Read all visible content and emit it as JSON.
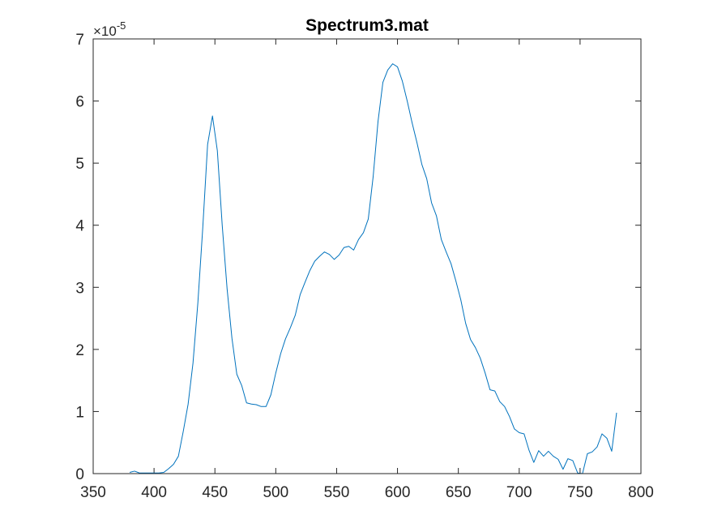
{
  "colors": {
    "series": "#0072BD",
    "axes": "#262626",
    "background": "#ffffff"
  },
  "chart_data": {
    "type": "line",
    "title": "Spectrum3.mat",
    "xlabel": "",
    "ylabel": "",
    "xlim": [
      350,
      800
    ],
    "ylim": [
      0,
      7
    ],
    "y_multiplier_base": "×10",
    "y_multiplier_exponent": "-5",
    "grid": false,
    "box": true,
    "xticks": [
      350,
      400,
      450,
      500,
      550,
      600,
      650,
      700,
      750,
      800
    ],
    "xtick_labels": [
      "350",
      "400",
      "450",
      "500",
      "550",
      "600",
      "650",
      "700",
      "750",
      "800"
    ],
    "yticks": [
      0,
      1,
      2,
      3,
      4,
      5,
      6,
      7
    ],
    "ytick_labels": [
      "0",
      "1",
      "2",
      "3",
      "4",
      "5",
      "6",
      "7"
    ],
    "series": [
      {
        "x": [
          380,
          384,
          388,
          392,
          396,
          400,
          404,
          408,
          412,
          416,
          420,
          424,
          428,
          432,
          436,
          440,
          444,
          448,
          452,
          456,
          460,
          464,
          468,
          472,
          476,
          480,
          484,
          488,
          492,
          496,
          500,
          504,
          508,
          512,
          516,
          520,
          524,
          528,
          532,
          536,
          540,
          544,
          548,
          552,
          556,
          560,
          564,
          568,
          572,
          576,
          580,
          584,
          588,
          592,
          596,
          600,
          604,
          608,
          612,
          616,
          620,
          624,
          628,
          632,
          636,
          640,
          644,
          648,
          652,
          656,
          660,
          664,
          668,
          672,
          676,
          680,
          684,
          688,
          692,
          696,
          700,
          704,
          708,
          712,
          716,
          720,
          724,
          728,
          732,
          736,
          740,
          744,
          748,
          752,
          756,
          760,
          764,
          768,
          772,
          776,
          780
        ],
        "y": [
          0.02,
          0.04,
          0.01,
          0.01,
          0.01,
          0.01,
          0.01,
          0.02,
          0.08,
          0.15,
          0.28,
          0.68,
          1.12,
          1.78,
          2.75,
          3.95,
          5.3,
          5.76,
          5.2,
          4.0,
          2.98,
          2.18,
          1.6,
          1.42,
          1.14,
          1.12,
          1.11,
          1.08,
          1.08,
          1.27,
          1.62,
          1.93,
          2.17,
          2.35,
          2.55,
          2.88,
          3.08,
          3.27,
          3.42,
          3.5,
          3.57,
          3.53,
          3.45,
          3.52,
          3.64,
          3.66,
          3.6,
          3.77,
          3.88,
          4.1,
          4.78,
          5.67,
          6.3,
          6.5,
          6.6,
          6.55,
          6.32,
          6.0,
          5.65,
          5.33,
          4.98,
          4.75,
          4.36,
          4.15,
          3.77,
          3.57,
          3.38,
          3.1,
          2.8,
          2.42,
          2.16,
          2.03,
          1.86,
          1.62,
          1.35,
          1.33,
          1.16,
          1.08,
          0.92,
          0.72,
          0.66,
          0.64,
          0.38,
          0.18,
          0.37,
          0.28,
          0.36,
          0.28,
          0.23,
          0.07,
          0.24,
          0.21,
          0.01,
          0.0,
          0.32,
          0.35,
          0.43,
          0.64,
          0.57,
          0.36,
          0.98
        ]
      }
    ]
  }
}
